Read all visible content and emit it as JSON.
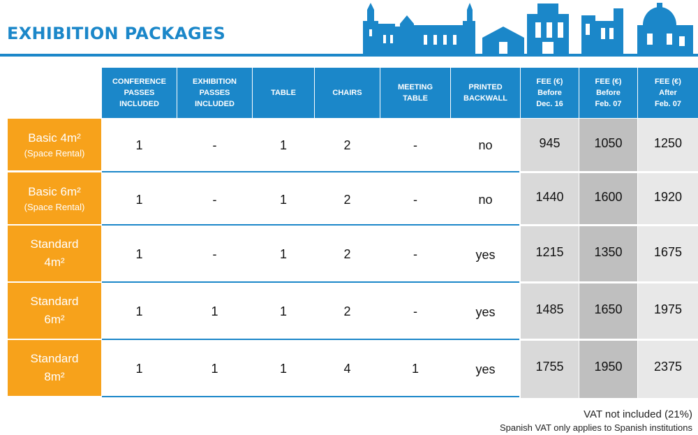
{
  "title": "EXHIBITION PACKAGES",
  "columns": [
    "CONFERENCE\nPASSES\nINCLUDED",
    "EXHIBITION\nPASSES\nINCLUDED",
    "TABLE",
    "CHAIRS",
    "MEETING\nTABLE",
    "PRINTED\nBACKWALL",
    "FEE (€)\nBefore\nDec. 16",
    "FEE (€)\nBefore\nFeb. 07",
    "FEE (€)\nAfter\nFeb. 07"
  ],
  "rows": [
    {
      "label": "Basic 4m²",
      "sublabel": "(Space Rental)",
      "values": [
        "1",
        "-",
        "1",
        "2",
        "-",
        "no"
      ],
      "fees": [
        "945",
        "1050",
        "1250"
      ]
    },
    {
      "label": "Basic 6m²",
      "sublabel": "(Space Rental)",
      "values": [
        "1",
        "-",
        "1",
        "2",
        "-",
        "no"
      ],
      "fees": [
        "1440",
        "1600",
        "1920"
      ]
    },
    {
      "label": "Standard\n4m²",
      "sublabel": "",
      "values": [
        "1",
        "-",
        "1",
        "2",
        "-",
        "yes"
      ],
      "fees": [
        "1215",
        "1350",
        "1675"
      ]
    },
    {
      "label": "Standard\n6m²",
      "sublabel": "",
      "values": [
        "1",
        "1",
        "1",
        "2",
        "-",
        "yes"
      ],
      "fees": [
        "1485",
        "1650",
        "1975"
      ]
    },
    {
      "label": "Standard\n8m²",
      "sublabel": "",
      "values": [
        "1",
        "1",
        "1",
        "4",
        "1",
        "yes"
      ],
      "fees": [
        "1755",
        "1950",
        "2375"
      ]
    }
  ],
  "notes": {
    "vat": "VAT not included (21%)",
    "spanish": "Spanish VAT only applies to Spanish institutions"
  },
  "colors": {
    "blue": "#1b87c9",
    "orange": "#f7a21b",
    "fee_before_dec": "#d9d9d9",
    "fee_before_feb": "#bfbfbf",
    "fee_after_feb": "#e8e8e8"
  },
  "decorations": {
    "skyline": "city-skyline-silhouette"
  }
}
